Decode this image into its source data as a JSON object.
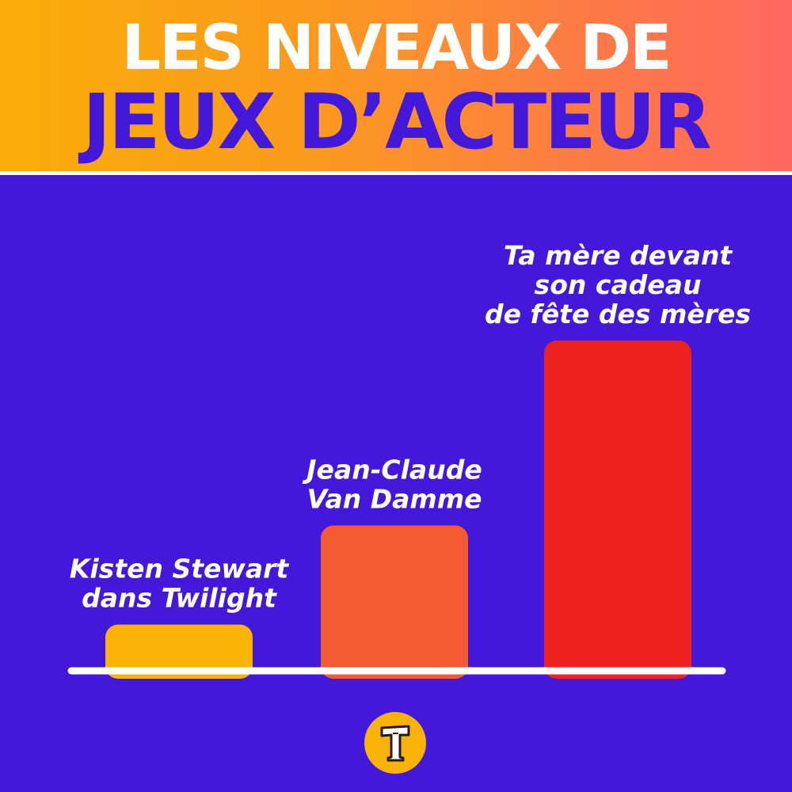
{
  "header": {
    "title_line1": "LES NIVEAUX DE",
    "title_line2": "JEUX D’ACTEUR"
  },
  "colors": {
    "background": "#4318d9",
    "header_gradient": [
      "#f9ad08",
      "#ff6860"
    ],
    "baseline": "#ffffff",
    "label": "#ffffff"
  },
  "chart_data": {
    "type": "bar",
    "title": "LES NIVEAUX DE JEUX D’ACTEUR",
    "xlabel": "",
    "ylabel": "",
    "ylim": [
      0,
      100
    ],
    "grid": false,
    "legend": "none",
    "categories": [
      "Kisten Stewart dans Twilight",
      "Jean-Claude Van Damme",
      "Ta mère devant son cadeau de fête des mères"
    ],
    "category_lines": [
      [
        "Kisten Stewart",
        "dans Twilight"
      ],
      [
        "Jean-Claude",
        "Van Damme"
      ],
      [
        "Ta mère devant",
        "son cadeau",
        "de fête des mères"
      ]
    ],
    "values": [
      14,
      44,
      100
    ],
    "bar_colors": [
      "#f9b308",
      "#f45a34",
      "#ef2222"
    ]
  },
  "logo": {
    "icon": "t-letter-logo-icon",
    "color": "#f9b308"
  }
}
